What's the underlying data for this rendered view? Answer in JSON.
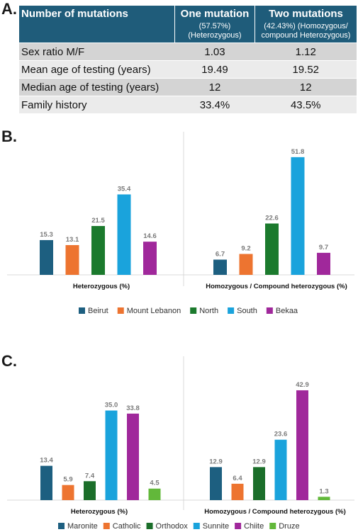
{
  "panels": {
    "a": "A.",
    "b": "B.",
    "c": "C."
  },
  "table": {
    "headers": [
      {
        "title": "Number of mutations",
        "sub": ""
      },
      {
        "title": "One mutation",
        "sub": "(57.57%) (Heterozygous)"
      },
      {
        "title": "Two mutations",
        "sub": "(42.43%) (Homozygous/ compound Heterozygous)"
      }
    ],
    "rows": [
      [
        "Sex ratio M/F",
        "1.03",
        "1.12"
      ],
      [
        "Mean age of testing (years)",
        "19.49",
        "19.52"
      ],
      [
        "Median age of testing (years)",
        "12",
        "12"
      ],
      [
        "Family history",
        "33.4%",
        "43.5%"
      ]
    ]
  },
  "chart_data": [
    {
      "type": "bar",
      "title": "",
      "categories": [
        "Heterozygous (%)",
        "Homozygous / Compound heterozygous (%)"
      ],
      "series": [
        {
          "name": "Beirut",
          "color": "#1d5f80",
          "values": [
            15.3,
            6.7
          ]
        },
        {
          "name": "Mount Lebanon",
          "color": "#ed7430",
          "values": [
            13.1,
            9.2
          ]
        },
        {
          "name": "North",
          "color": "#1b7a2d",
          "values": [
            21.5,
            22.6
          ]
        },
        {
          "name": "South",
          "color": "#1aa3dc",
          "values": [
            35.4,
            51.8
          ]
        },
        {
          "name": "Bekaa",
          "color": "#a0289b",
          "values": [
            14.6,
            9.7
          ]
        }
      ],
      "ylim": [
        0,
        53
      ],
      "grid": false,
      "legend": "bottom"
    },
    {
      "type": "bar",
      "title": "",
      "categories": [
        "Heterozygous (%)",
        "Homozygous / Compound heterozygous (%)"
      ],
      "series": [
        {
          "name": "Maronite",
          "color": "#1d5f80",
          "values": [
            13.4,
            12.9
          ]
        },
        {
          "name": "Catholic",
          "color": "#ed7430",
          "values": [
            5.9,
            6.4
          ]
        },
        {
          "name": "Orthodox",
          "color": "#1b6e2a",
          "values": [
            7.4,
            12.9
          ]
        },
        {
          "name": "Sunnite",
          "color": "#1aa3dc",
          "values": [
            35.0,
            23.6
          ]
        },
        {
          "name": "Chiite",
          "color": "#a0289b",
          "values": [
            33.8,
            42.9
          ]
        },
        {
          "name": "Druze",
          "color": "#62b83a",
          "values": [
            4.5,
            1.3
          ]
        }
      ],
      "ylim": [
        0,
        44
      ],
      "grid": false,
      "legend": "bottom"
    }
  ]
}
